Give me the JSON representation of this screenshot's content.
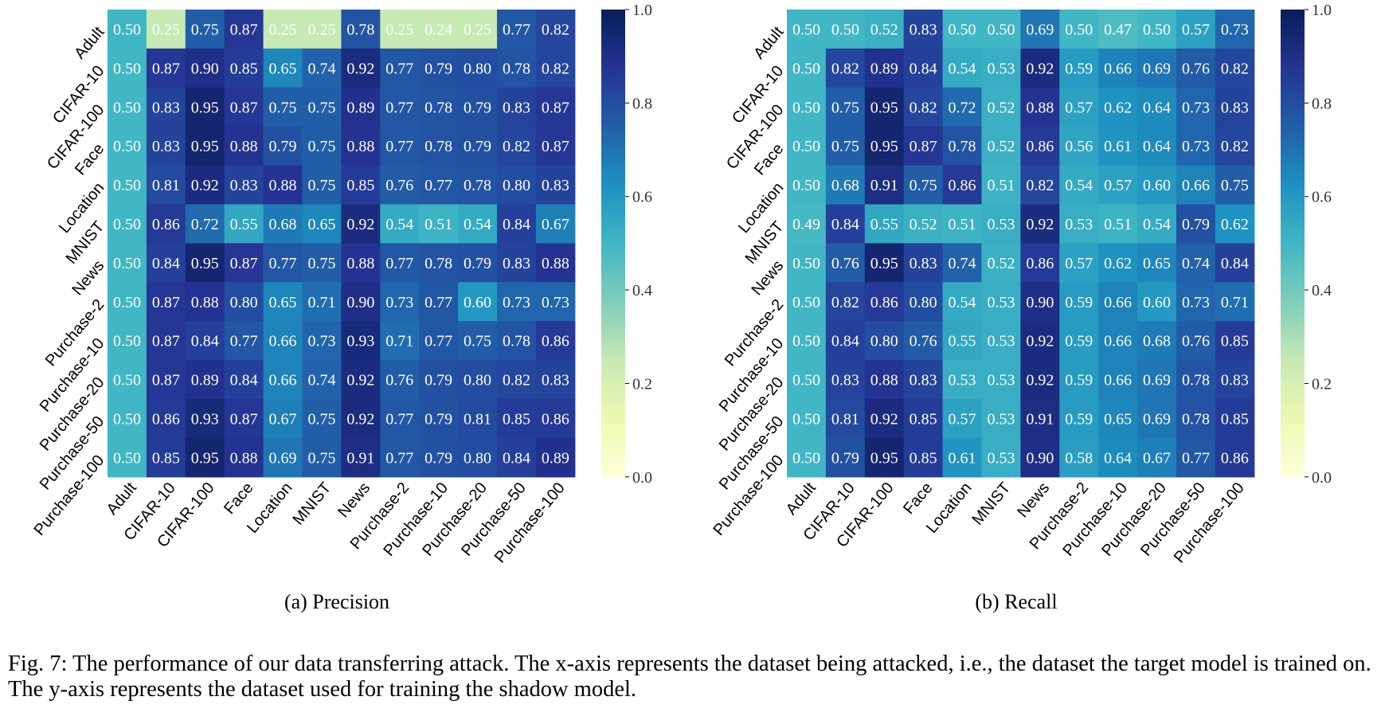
{
  "figure": {
    "caption": "Fig. 7: The performance of our data transferring attack. The x-axis represents the dataset being attacked, i.e., the dataset the target model is trained on. The y-axis represents the dataset used for training the shadow model."
  },
  "colorscale": {
    "name": "YlGnBu",
    "stops": [
      "#ffffd9",
      "#edf8b1",
      "#c7e9b4",
      "#7fcdbb",
      "#41b6c4",
      "#1d91c0",
      "#225ea8",
      "#253494",
      "#081d58"
    ],
    "text_color": "#ffffff"
  },
  "chart_data": [
    {
      "type": "heatmap",
      "subtitle": "(a) Precision",
      "x_categories": [
        "Adult",
        "CIFAR-10",
        "CIFAR-100",
        "Face",
        "Location",
        "MNIST",
        "News",
        "Purchase-2",
        "Purchase-10",
        "Purchase-20",
        "Purchase-50",
        "Purchase-100"
      ],
      "y_categories": [
        "Adult",
        "CIFAR-10",
        "CIFAR-100",
        "Face",
        "Location",
        "MNIST",
        "News",
        "Purchase-2",
        "Purchase-10",
        "Purchase-20",
        "Purchase-50",
        "Purchase-100"
      ],
      "values": [
        [
          0.5,
          0.25,
          0.75,
          0.87,
          0.25,
          0.25,
          0.78,
          0.25,
          0.24,
          0.25,
          0.77,
          0.82
        ],
        [
          0.5,
          0.87,
          0.9,
          0.85,
          0.65,
          0.74,
          0.92,
          0.77,
          0.79,
          0.8,
          0.78,
          0.82
        ],
        [
          0.5,
          0.83,
          0.95,
          0.87,
          0.75,
          0.75,
          0.89,
          0.77,
          0.78,
          0.79,
          0.83,
          0.87
        ],
        [
          0.5,
          0.83,
          0.95,
          0.88,
          0.79,
          0.75,
          0.88,
          0.77,
          0.78,
          0.79,
          0.82,
          0.87
        ],
        [
          0.5,
          0.81,
          0.92,
          0.83,
          0.88,
          0.75,
          0.85,
          0.76,
          0.77,
          0.78,
          0.8,
          0.83
        ],
        [
          0.5,
          0.86,
          0.72,
          0.55,
          0.68,
          0.65,
          0.92,
          0.54,
          0.51,
          0.54,
          0.84,
          0.67
        ],
        [
          0.5,
          0.84,
          0.95,
          0.87,
          0.77,
          0.75,
          0.88,
          0.77,
          0.78,
          0.79,
          0.83,
          0.88
        ],
        [
          0.5,
          0.87,
          0.88,
          0.8,
          0.65,
          0.71,
          0.9,
          0.73,
          0.77,
          0.6,
          0.73,
          0.73
        ],
        [
          0.5,
          0.87,
          0.84,
          0.77,
          0.66,
          0.73,
          0.93,
          0.71,
          0.77,
          0.75,
          0.78,
          0.86
        ],
        [
          0.5,
          0.87,
          0.89,
          0.84,
          0.66,
          0.74,
          0.92,
          0.76,
          0.79,
          0.8,
          0.82,
          0.83
        ],
        [
          0.5,
          0.86,
          0.93,
          0.87,
          0.67,
          0.75,
          0.92,
          0.77,
          0.79,
          0.81,
          0.85,
          0.86
        ],
        [
          0.5,
          0.85,
          0.95,
          0.88,
          0.69,
          0.75,
          0.91,
          0.77,
          0.79,
          0.8,
          0.84,
          0.89
        ]
      ],
      "zlim": [
        0.0,
        1.0
      ],
      "colorbar_ticks": [
        "0.0",
        "0.2",
        "0.4",
        "0.6",
        "0.8",
        "1.0"
      ]
    },
    {
      "type": "heatmap",
      "subtitle": "(b) Recall",
      "x_categories": [
        "Adult",
        "CIFAR-10",
        "CIFAR-100",
        "Face",
        "Location",
        "MNIST",
        "News",
        "Purchase-2",
        "Purchase-10",
        "Purchase-20",
        "Purchase-50",
        "Purchase-100"
      ],
      "y_categories": [
        "Adult",
        "CIFAR-10",
        "CIFAR-100",
        "Face",
        "Location",
        "MNIST",
        "News",
        "Purchase-2",
        "Purchase-10",
        "Purchase-20",
        "Purchase-50",
        "Purchase-100"
      ],
      "values": [
        [
          0.5,
          0.5,
          0.52,
          0.83,
          0.5,
          0.5,
          0.69,
          0.5,
          0.47,
          0.5,
          0.57,
          0.73
        ],
        [
          0.5,
          0.82,
          0.89,
          0.84,
          0.54,
          0.53,
          0.92,
          0.59,
          0.66,
          0.69,
          0.76,
          0.82
        ],
        [
          0.5,
          0.75,
          0.95,
          0.82,
          0.72,
          0.52,
          0.88,
          0.57,
          0.62,
          0.64,
          0.73,
          0.83
        ],
        [
          0.5,
          0.75,
          0.95,
          0.87,
          0.78,
          0.52,
          0.86,
          0.56,
          0.61,
          0.64,
          0.73,
          0.82
        ],
        [
          0.5,
          0.68,
          0.91,
          0.75,
          0.86,
          0.51,
          0.82,
          0.54,
          0.57,
          0.6,
          0.66,
          0.75
        ],
        [
          0.49,
          0.84,
          0.55,
          0.52,
          0.51,
          0.53,
          0.92,
          0.53,
          0.51,
          0.54,
          0.79,
          0.62
        ],
        [
          0.5,
          0.76,
          0.95,
          0.83,
          0.74,
          0.52,
          0.86,
          0.57,
          0.62,
          0.65,
          0.74,
          0.84
        ],
        [
          0.5,
          0.82,
          0.86,
          0.8,
          0.54,
          0.53,
          0.9,
          0.59,
          0.66,
          0.6,
          0.73,
          0.71
        ],
        [
          0.5,
          0.84,
          0.8,
          0.76,
          0.55,
          0.53,
          0.92,
          0.59,
          0.66,
          0.68,
          0.76,
          0.85
        ],
        [
          0.5,
          0.83,
          0.88,
          0.83,
          0.53,
          0.53,
          0.92,
          0.59,
          0.66,
          0.69,
          0.78,
          0.83
        ],
        [
          0.5,
          0.81,
          0.92,
          0.85,
          0.57,
          0.53,
          0.91,
          0.59,
          0.65,
          0.69,
          0.78,
          0.85
        ],
        [
          0.5,
          0.79,
          0.95,
          0.85,
          0.61,
          0.53,
          0.9,
          0.58,
          0.64,
          0.67,
          0.77,
          0.86
        ]
      ],
      "zlim": [
        0.0,
        1.0
      ],
      "colorbar_ticks": [
        "0.0",
        "0.2",
        "0.4",
        "0.6",
        "0.8",
        "1.0"
      ]
    }
  ]
}
